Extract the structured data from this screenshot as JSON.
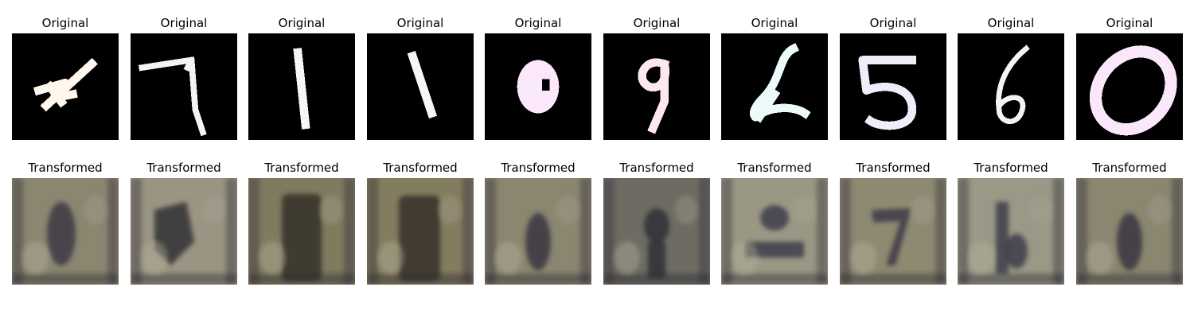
{
  "grid": {
    "rows": [
      {
        "label": "Original",
        "panels": [
          {
            "digit": "4",
            "tint": "#fff6ee"
          },
          {
            "digit": "7",
            "tint": "#f4f4f4"
          },
          {
            "digit": "1",
            "tint": "#f6f6f6"
          },
          {
            "digit": "1",
            "tint": "#f6f6f6"
          },
          {
            "digit": "0",
            "tint": "#fae8fa"
          },
          {
            "digit": "9",
            "tint": "#fde8ee"
          },
          {
            "digit": "2",
            "tint": "#edfafa"
          },
          {
            "digit": "5",
            "tint": "#eeeefa"
          },
          {
            "digit": "6",
            "tint": "#f4f4f4"
          },
          {
            "digit": "0",
            "tint": "#fae8fa"
          }
        ]
      },
      {
        "label": "Transformed",
        "panels": [
          {
            "base": "#8a8670",
            "ink": "#3a3442"
          },
          {
            "base": "#9a9482",
            "ink": "#2a2a30"
          },
          {
            "base": "#807a5e",
            "ink": "#2e2a28"
          },
          {
            "base": "#847c5e",
            "ink": "#2e2a28"
          },
          {
            "base": "#8a8670",
            "ink": "#343040"
          },
          {
            "base": "#6e6c62",
            "ink": "#2a2a34"
          },
          {
            "base": "#9a9884",
            "ink": "#3a3848"
          },
          {
            "base": "#8e8a72",
            "ink": "#383444"
          },
          {
            "base": "#9a9886",
            "ink": "#3a3848"
          },
          {
            "base": "#8a8670",
            "ink": "#343040"
          }
        ]
      }
    ]
  }
}
